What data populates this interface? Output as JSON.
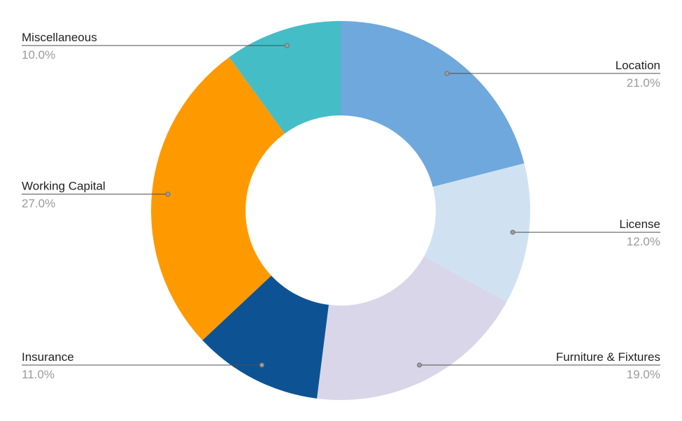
{
  "chart_data": {
    "type": "pie",
    "style": "donut",
    "title": "",
    "slices": [
      {
        "label": "Location",
        "value": 21.0,
        "display": "21.0%",
        "color": "#6fa8dc"
      },
      {
        "label": "License",
        "value": 12.0,
        "display": "12.0%",
        "color": "#d0e2f2"
      },
      {
        "label": "Furniture & Fixtures",
        "value": 19.0,
        "display": "19.0%",
        "color": "#d9d6e9"
      },
      {
        "label": "Insurance",
        "value": 11.0,
        "display": "11.0%",
        "color": "#0d5394"
      },
      {
        "label": "Working Capital",
        "value": 27.0,
        "display": "27.0%",
        "color": "#ff9900"
      },
      {
        "label": "Miscellaneous",
        "value": 10.0,
        "display": "10.0%",
        "color": "#45bdc7"
      }
    ]
  }
}
